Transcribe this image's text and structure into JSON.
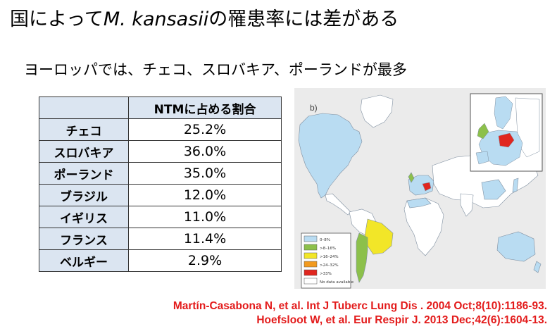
{
  "slide": {
    "title_prefix": "国によって",
    "title_species": "M. kansasii",
    "title_suffix": "の罹患率には差がある",
    "subtitle": "ヨーロッパでは、チェコ、スロバキア、ポーランドが最多"
  },
  "table": {
    "header": "NTMに占める割合",
    "rows": [
      {
        "country": "チェコ",
        "value": "25.2%"
      },
      {
        "country": "スロバキア",
        "value": "36.0%"
      },
      {
        "country": "ポーランド",
        "value": "35.0%"
      },
      {
        "country": "ブラジル",
        "value": "12.0%"
      },
      {
        "country": "イギリス",
        "value": "11.0%"
      },
      {
        "country": "フランス",
        "value": "11.4%"
      },
      {
        "country": "ベルギー",
        "value": "2.9%"
      }
    ]
  },
  "map": {
    "panel_label": "b)",
    "legend": [
      {
        "label": "0–8%",
        "color": "#b9dcf2"
      },
      {
        "label": ">8–16%",
        "color": "#8cc04b"
      },
      {
        "label": ">16–24%",
        "color": "#f2e628"
      },
      {
        "label": ">24–32%",
        "color": "#f29a1f"
      },
      {
        "label": ">33%",
        "color": "#e0261f"
      },
      {
        "label": "No data available",
        "color": "#ffffff"
      }
    ]
  },
  "references": [
    "Martín-Casabona N, et al. Int J Tuberc Lung Dis . 2004 Oct;8(10):1186-93.",
    "Hoefsloot W, et al. Eur Respir J. 2013 Dec;42(6):1604-13."
  ]
}
